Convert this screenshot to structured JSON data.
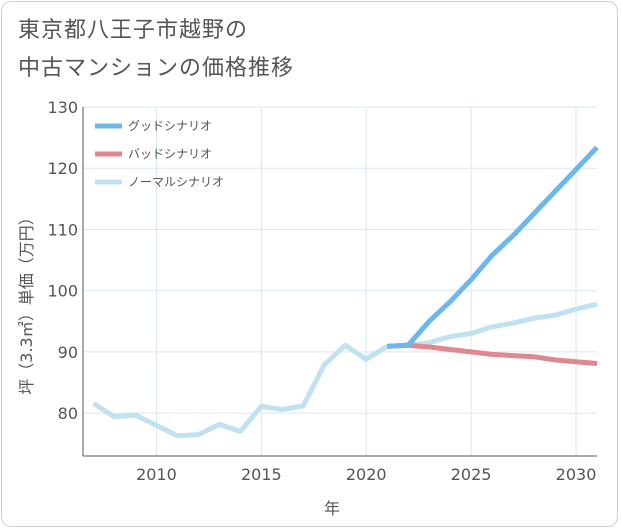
{
  "title": {
    "line1": "東京都八王子市越野の",
    "line2": "中古マンションの価格推移"
  },
  "chart_data": {
    "type": "line",
    "title": "東京都八王子市越野の中古マンションの価格推移",
    "xlabel": "年",
    "ylabel": "坪（3.3㎡）単価（万円）",
    "xlim": [
      2006.5,
      2031
    ],
    "ylim": [
      73,
      130
    ],
    "x_ticks": [
      2010,
      2015,
      2020,
      2025,
      2030
    ],
    "y_ticks": [
      80,
      90,
      100,
      110,
      120,
      130
    ],
    "grid": true,
    "legend_position": "top-left",
    "series": [
      {
        "name": "グッドシナリオ",
        "color": "#6cb8ee",
        "x": [
          2021,
          2022,
          2023,
          2024,
          2025,
          2026,
          2027,
          2028,
          2029,
          2030,
          2031
        ],
        "values": [
          90.9,
          91.1,
          95.0,
          98.2,
          101.8,
          105.8,
          109.0,
          112.6,
          116.2,
          119.8,
          123.4
        ]
      },
      {
        "name": "バッドシナリオ",
        "color": "#e0888f",
        "x": [
          2021,
          2022,
          2023,
          2024,
          2025,
          2026,
          2027,
          2028,
          2029,
          2030,
          2031
        ],
        "values": [
          90.9,
          91.1,
          90.8,
          90.4,
          90.0,
          89.6,
          89.4,
          89.2,
          88.7,
          88.4,
          88.1
        ]
      },
      {
        "name": "ノーマルシナリオ",
        "color": "#c1e0f0",
        "x": [
          2007,
          2008,
          2009,
          2010,
          2011,
          2012,
          2013,
          2014,
          2015,
          2016,
          2017,
          2018,
          2019,
          2020,
          2021,
          2022,
          2023,
          2024,
          2025,
          2026,
          2027,
          2028,
          2029,
          2030,
          2031
        ],
        "values": [
          81.6,
          79.4,
          79.7,
          78.0,
          76.3,
          76.5,
          78.2,
          77.0,
          81.1,
          80.6,
          81.2,
          87.9,
          91.1,
          88.8,
          90.9,
          91.1,
          91.5,
          92.5,
          93.0,
          94.1,
          94.7,
          95.5,
          96.0,
          97.0,
          97.8
        ]
      }
    ]
  }
}
